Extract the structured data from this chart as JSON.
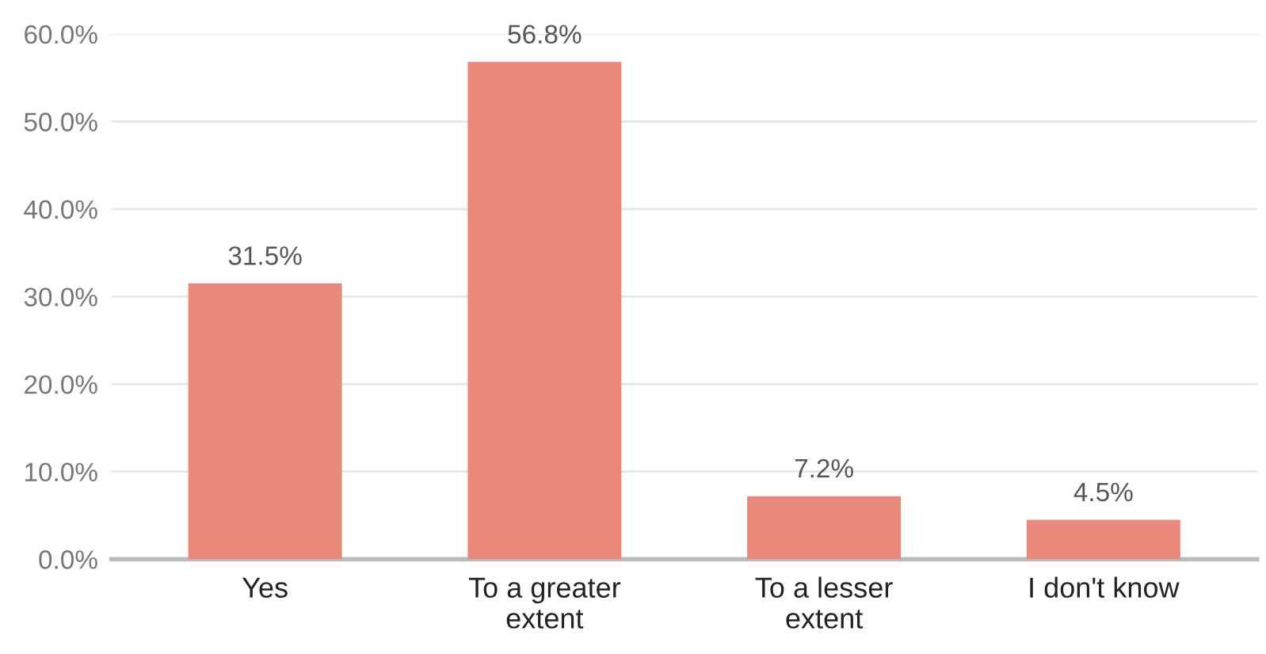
{
  "chart_data": {
    "type": "bar",
    "categories": [
      "Yes",
      "To a greater\nextent",
      "To a lesser\nextent",
      "I don't know"
    ],
    "values": [
      31.5,
      56.8,
      7.2,
      4.5
    ],
    "value_labels": [
      "31.5%",
      "56.8%",
      "7.2%",
      "4.5%"
    ],
    "color": "#e8897c",
    "ylim": [
      0,
      60
    ],
    "yticks": [
      {
        "value": 0,
        "label": "0.0%"
      },
      {
        "value": 10,
        "label": "10.0%"
      },
      {
        "value": 20,
        "label": "20.0%"
      },
      {
        "value": 30,
        "label": "30.0%"
      },
      {
        "value": 40,
        "label": "40.0%"
      },
      {
        "value": 50,
        "label": "50.0%"
      },
      {
        "value": 60,
        "label": "60.0%"
      }
    ],
    "grid": "y"
  }
}
